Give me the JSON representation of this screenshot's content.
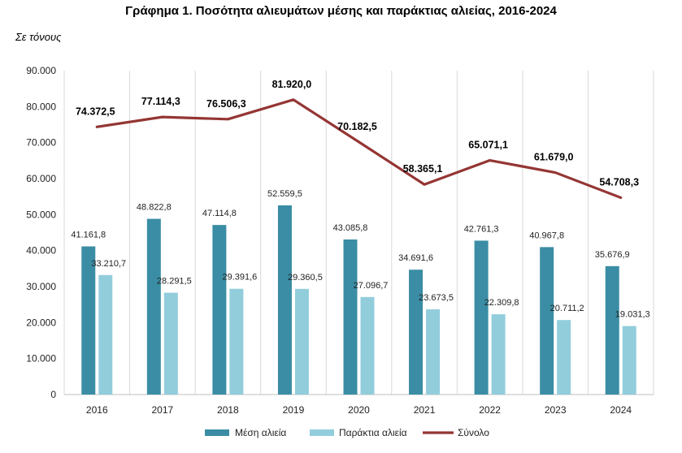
{
  "title": "Γράφημα 1. Ποσότητα αλιευμάτων μέσης και παράκτιας αλιείας, 2016-2024",
  "unit": "Σε τόνους",
  "colors": {
    "mesi": "#3A8DA4",
    "paraktia": "#92CDDC",
    "synolo": "#943634",
    "grid": "#D9D9D9"
  },
  "chart_data": {
    "type": "bar",
    "categories": [
      "2016",
      "2017",
      "2018",
      "2019",
      "2020",
      "2021",
      "2022",
      "2023",
      "2024"
    ],
    "series": [
      {
        "name": "Μέση αλιεία",
        "type": "bar",
        "values": [
          41161.8,
          48822.8,
          47114.8,
          52559.5,
          43085.8,
          34691.6,
          42761.3,
          40967.8,
          35676.9
        ],
        "labels": [
          "41.161,8",
          "48.822,8",
          "47.114,8",
          "52.559,5",
          "43.085,8",
          "34.691,6",
          "42.761,3",
          "40.967,8",
          "35.676,9"
        ]
      },
      {
        "name": "Παράκτια αλιεία",
        "type": "bar",
        "values": [
          33210.7,
          28291.5,
          29391.6,
          29360.5,
          27096.7,
          23673.5,
          22309.8,
          20711.2,
          19031.3
        ],
        "labels": [
          "33.210,7",
          "28.291,5",
          "29.391,6",
          "29.360,5",
          "27.096,7",
          "23.673,5",
          "22.309,8",
          "20.711,2",
          "19.031,3"
        ]
      },
      {
        "name": "Σύνολο",
        "type": "line",
        "values": [
          74372.5,
          77114.3,
          76506.3,
          81920.0,
          70182.5,
          58365.1,
          65071.1,
          61679.0,
          54708.3
        ],
        "labels": [
          "74.372,5",
          "77.114,3",
          "76.506,3",
          "81.920,0",
          "70.182,5",
          "58.365,1",
          "65.071,1",
          "61.679,0",
          "54.708,3"
        ]
      }
    ],
    "ylim": [
      0,
      90000
    ],
    "yticks": [
      0,
      10000,
      20000,
      30000,
      40000,
      50000,
      60000,
      70000,
      80000,
      90000
    ],
    "ytick_labels": [
      "0",
      "10.000",
      "20.000",
      "30.000",
      "40.000",
      "50.000",
      "60.000",
      "70.000",
      "80.000",
      "90.000"
    ],
    "grid": "vertical category separators",
    "legend": "bottom"
  }
}
